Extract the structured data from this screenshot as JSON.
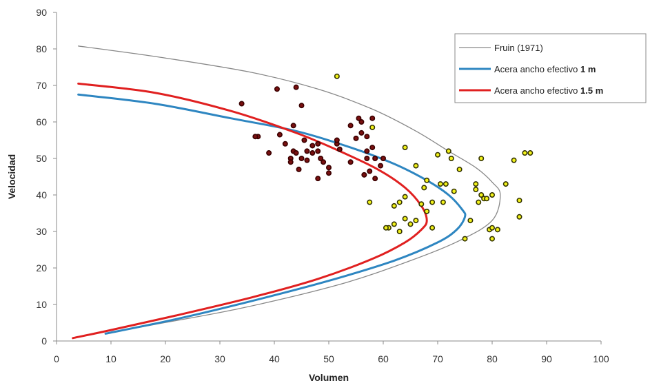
{
  "chart_data": {
    "type": "scatter",
    "xlabel": "Volumen",
    "ylabel": "Velocidad",
    "xlim": [
      0,
      100
    ],
    "ylim": [
      0,
      90
    ],
    "x_ticks": [
      0,
      10,
      20,
      30,
      40,
      50,
      60,
      70,
      80,
      90,
      100
    ],
    "y_ticks": [
      0,
      10,
      20,
      30,
      40,
      50,
      60,
      70,
      80,
      90
    ],
    "grid": false,
    "legend_position": "top-right",
    "curves": [
      {
        "name": "Fruin (1971)",
        "name_plain": "Fruin (1971) ",
        "name_bold": "",
        "color": "#888888",
        "points": [
          [
            4,
            80.8
          ],
          [
            20,
            77.5
          ],
          [
            36,
            73.5
          ],
          [
            48,
            69
          ],
          [
            58,
            63.5
          ],
          [
            66,
            57.5
          ],
          [
            72,
            52
          ],
          [
            77,
            47.5
          ],
          [
            80,
            43.5
          ],
          [
            81.5,
            40
          ],
          [
            80,
            33
          ],
          [
            74,
            27.5
          ],
          [
            65,
            22
          ],
          [
            52,
            15.5
          ],
          [
            34,
            9
          ],
          [
            18,
            4.5
          ],
          [
            9,
            2
          ]
        ]
      },
      {
        "name": "Acera ancho efectivo 1 m",
        "name_plain": "Acera ancho efectivo ",
        "name_bold": "1 m",
        "color": "#2e86c1",
        "points": [
          [
            4,
            67.5
          ],
          [
            18,
            65
          ],
          [
            32,
            61
          ],
          [
            44,
            57.5
          ],
          [
            54,
            53
          ],
          [
            62,
            48.5
          ],
          [
            68,
            44
          ],
          [
            72,
            40
          ],
          [
            74.5,
            36
          ],
          [
            75,
            34
          ],
          [
            73.5,
            30.5
          ],
          [
            70,
            27
          ],
          [
            62,
            22
          ],
          [
            50,
            16.5
          ],
          [
            36,
            11
          ],
          [
            22,
            6
          ],
          [
            9,
            2
          ]
        ]
      },
      {
        "name": "Acera ancho efectivo 1.5 m",
        "name_plain": "Acera ancho efectivo ",
        "name_bold": "1.5 m",
        "color": "#e02020",
        "points": [
          [
            4,
            70.5
          ],
          [
            18,
            68
          ],
          [
            32,
            63
          ],
          [
            44,
            57
          ],
          [
            52,
            52
          ],
          [
            59,
            47
          ],
          [
            64,
            42
          ],
          [
            67,
            37
          ],
          [
            68,
            33
          ],
          [
            67,
            30.5
          ],
          [
            64,
            27
          ],
          [
            58,
            22.5
          ],
          [
            48,
            17
          ],
          [
            36,
            12
          ],
          [
            22,
            7
          ],
          [
            10,
            3
          ],
          [
            3,
            0.8
          ]
        ]
      }
    ],
    "scatter_groups": [
      {
        "color": "#7a1010",
        "edge": "#3a0000",
        "points": [
          [
            34,
            65
          ],
          [
            37,
            56
          ],
          [
            41,
            56.5
          ],
          [
            40.5,
            69
          ],
          [
            44,
            69.5
          ],
          [
            43.5,
            59
          ],
          [
            45,
            64.5
          ],
          [
            42,
            54
          ],
          [
            43.5,
            52
          ],
          [
            43,
            50
          ],
          [
            43,
            49
          ],
          [
            44,
            51.5
          ],
          [
            45,
            50
          ],
          [
            45.5,
            55
          ],
          [
            46,
            52
          ],
          [
            47,
            53.5
          ],
          [
            48,
            52
          ],
          [
            44.5,
            47
          ],
          [
            46,
            49.5
          ],
          [
            47,
            51.5
          ],
          [
            48,
            54
          ],
          [
            48.5,
            50
          ],
          [
            48,
            44.5
          ],
          [
            49,
            49
          ],
          [
            50,
            47.5
          ],
          [
            50,
            46
          ],
          [
            51.5,
            54
          ],
          [
            51.5,
            55
          ],
          [
            52,
            52.5
          ],
          [
            54,
            49
          ],
          [
            55,
            55.5
          ],
          [
            55.5,
            61
          ],
          [
            56,
            57
          ],
          [
            56,
            60
          ],
          [
            57,
            52
          ],
          [
            57,
            56
          ],
          [
            57,
            50
          ],
          [
            58,
            61
          ],
          [
            58,
            53
          ],
          [
            58.5,
            50
          ],
          [
            59.5,
            48
          ],
          [
            60,
            50
          ],
          [
            56.5,
            45.5
          ],
          [
            57.5,
            46.5
          ],
          [
            58.5,
            44.5
          ],
          [
            54,
            59
          ],
          [
            36.5,
            56
          ],
          [
            39,
            51.5
          ]
        ]
      },
      {
        "color": "#f2f21a",
        "edge": "#333300",
        "points": [
          [
            51.5,
            72.5
          ],
          [
            58,
            58.5
          ],
          [
            57.5,
            38
          ],
          [
            62,
            37
          ],
          [
            63,
            38
          ],
          [
            64,
            39.5
          ],
          [
            64,
            33.5
          ],
          [
            65,
            32
          ],
          [
            66,
            33
          ],
          [
            67,
            37.5
          ],
          [
            67.5,
            42
          ],
          [
            68,
            35.5
          ],
          [
            69,
            31
          ],
          [
            69,
            38
          ],
          [
            70,
            51
          ],
          [
            70.5,
            43
          ],
          [
            71,
            38
          ],
          [
            71.5,
            43
          ],
          [
            72,
            52
          ],
          [
            72.5,
            50
          ],
          [
            73,
            41
          ],
          [
            74,
            47
          ],
          [
            75,
            28
          ],
          [
            76,
            33
          ],
          [
            77,
            43
          ],
          [
            77.5,
            38
          ],
          [
            77,
            41.5
          ],
          [
            78,
            40
          ],
          [
            78.5,
            39
          ],
          [
            79,
            39
          ],
          [
            78,
            50
          ],
          [
            79.5,
            30.5
          ],
          [
            80,
            31
          ],
          [
            80,
            28
          ],
          [
            80,
            40
          ],
          [
            81,
            30.5
          ],
          [
            82.5,
            43
          ],
          [
            84,
            49.5
          ],
          [
            85,
            38.5
          ],
          [
            85,
            34
          ],
          [
            86,
            51.5
          ],
          [
            87,
            51.5
          ],
          [
            61,
            31
          ],
          [
            62,
            32
          ],
          [
            60.5,
            31
          ],
          [
            63,
            30
          ],
          [
            66,
            48
          ],
          [
            68,
            44
          ],
          [
            64,
            53
          ]
        ]
      }
    ]
  }
}
